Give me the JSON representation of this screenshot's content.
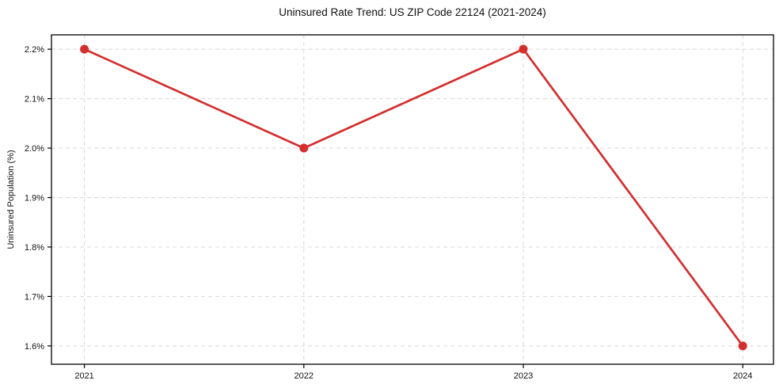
{
  "chart_data": {
    "type": "line",
    "title": "Uninsured Rate Trend: US ZIP Code 22124 (2021-2024)",
    "xlabel": "",
    "ylabel": "Uninsured Population (%)",
    "x": [
      2021,
      2022,
      2023,
      2024
    ],
    "x_tick_labels": [
      "2021",
      "2022",
      "2023",
      "2024"
    ],
    "values": [
      2.2,
      2.0,
      2.2,
      1.6
    ],
    "y_ticks": [
      1.6,
      1.7,
      1.8,
      1.9,
      2.0,
      2.1,
      2.2
    ],
    "y_tick_labels": [
      "1.6%",
      "1.7%",
      "1.8%",
      "1.9%",
      "2.0%",
      "2.1%",
      "2.2%"
    ],
    "xlim": [
      2020.85,
      2024.14
    ],
    "ylim": [
      1.563,
      2.229
    ],
    "grid": true,
    "grid_style": "dashed",
    "legend": "none",
    "line_color": "#d32f2f",
    "marker": "circle",
    "grid_color": "#d8d8d8",
    "spine_color": "#000000"
  }
}
